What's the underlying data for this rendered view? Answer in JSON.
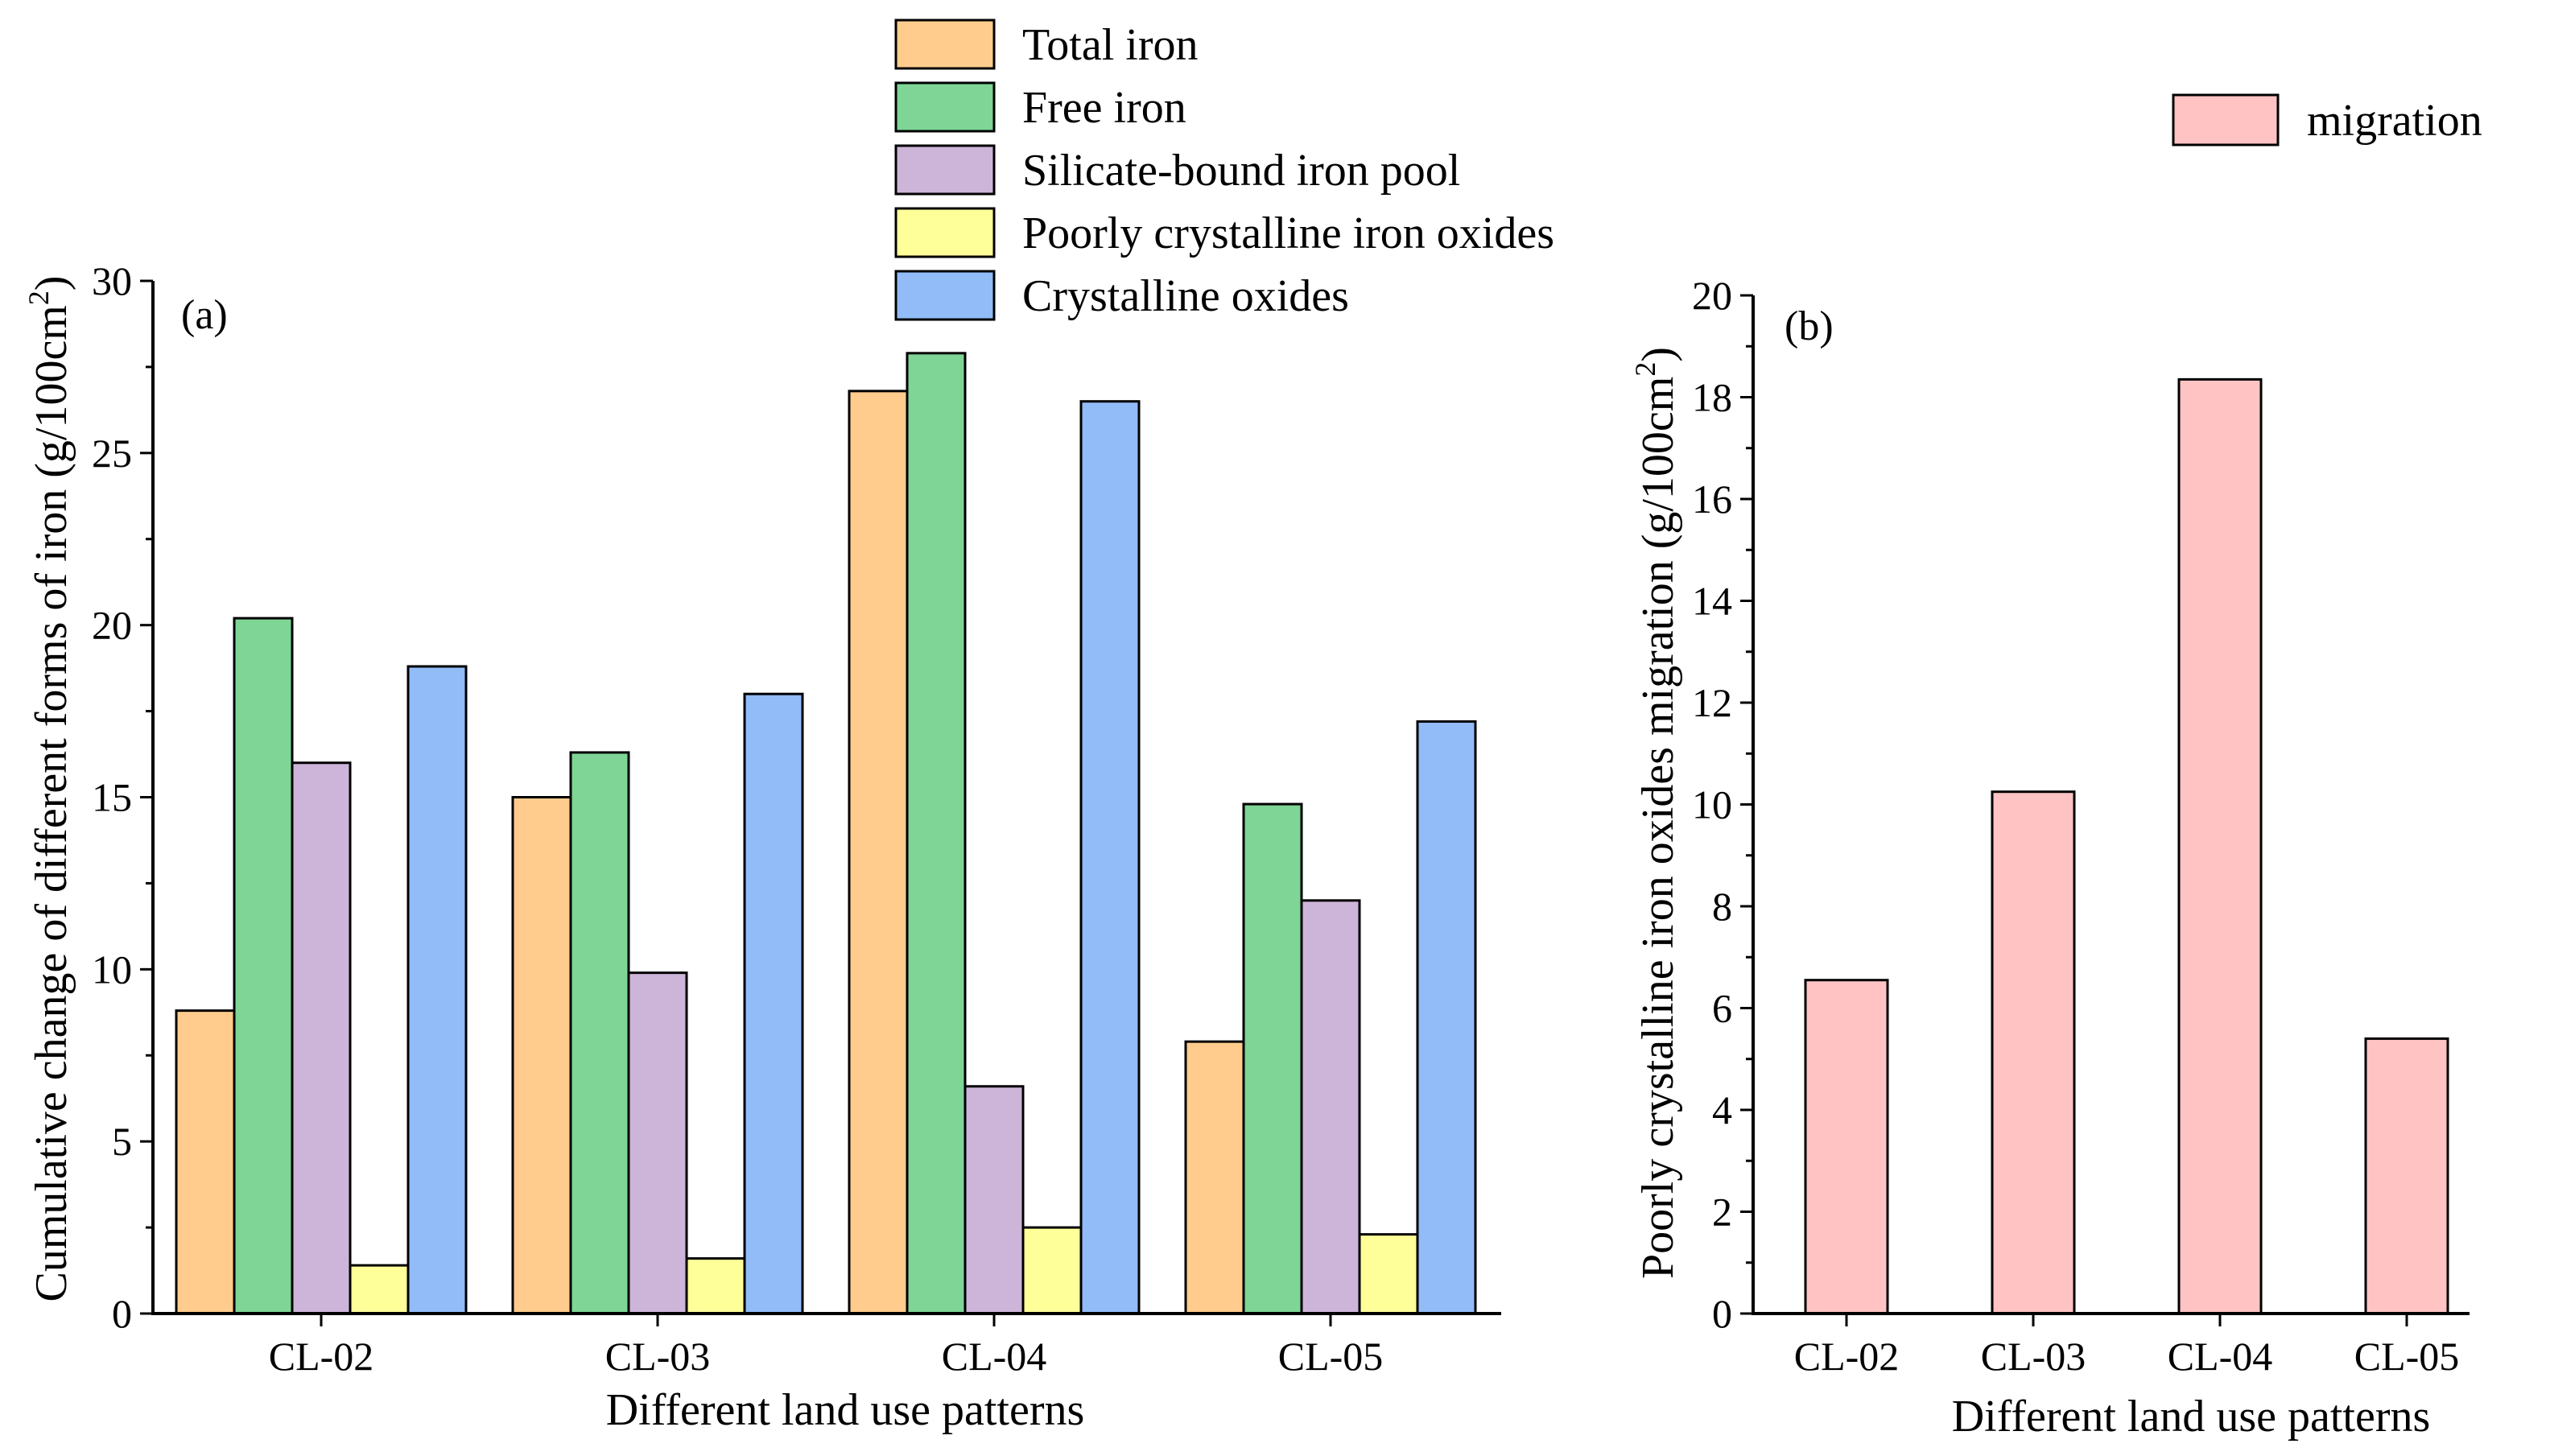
{
  "chart_data": [
    {
      "type": "bar",
      "panel_label": "(a)",
      "categories": [
        "CL-02",
        "CL-03",
        "CL-04",
        "CL-05"
      ],
      "series": [
        {
          "name": "Total iron",
          "color": "#FFCC8E",
          "values": [
            8.8,
            15.0,
            26.8,
            7.9
          ]
        },
        {
          "name": "Free iron",
          "color": "#7ED596",
          "values": [
            20.2,
            16.3,
            27.9,
            14.8
          ]
        },
        {
          "name": "Silicate-bound iron pool",
          "color": "#CDB5D9",
          "values": [
            16.0,
            9.9,
            6.6,
            12.0
          ]
        },
        {
          "name": "Poorly crystalline iron oxides",
          "color": "#FFFF99",
          "values": [
            1.4,
            1.6,
            2.5,
            2.3
          ]
        },
        {
          "name": "Crystalline oxides",
          "color": "#91BCF8",
          "values": [
            18.8,
            18.0,
            26.5,
            17.2
          ]
        }
      ],
      "xlabel": "Different land use patterns",
      "ylabel_main": "Cumulative change of different forms of iron (g/100cm",
      "ylabel_sup": "2",
      "ylabel_close": ")",
      "ylim": [
        0,
        30
      ],
      "yticks": [
        "0",
        "5",
        "10",
        "15",
        "20",
        "25",
        "30"
      ],
      "legend_position": "top-center"
    },
    {
      "type": "bar",
      "panel_label": "(b)",
      "categories": [
        "CL-02",
        "CL-03",
        "CL-04",
        "CL-05"
      ],
      "series": [
        {
          "name": "migration",
          "color": "#FFC3C3",
          "values": [
            6.55,
            10.25,
            18.35,
            5.4
          ]
        }
      ],
      "xlabel": "Different land use patterns",
      "ylabel_main": "Poorly crystalline iron oxides migration (g/100cm",
      "ylabel_sup": "2",
      "ylabel_close": ")",
      "ylim": [
        0,
        20
      ],
      "yticks": [
        "0",
        "2",
        "4",
        "6",
        "8",
        "10",
        "12",
        "14",
        "16",
        "18",
        "20"
      ],
      "legend_position": "top-right"
    }
  ]
}
